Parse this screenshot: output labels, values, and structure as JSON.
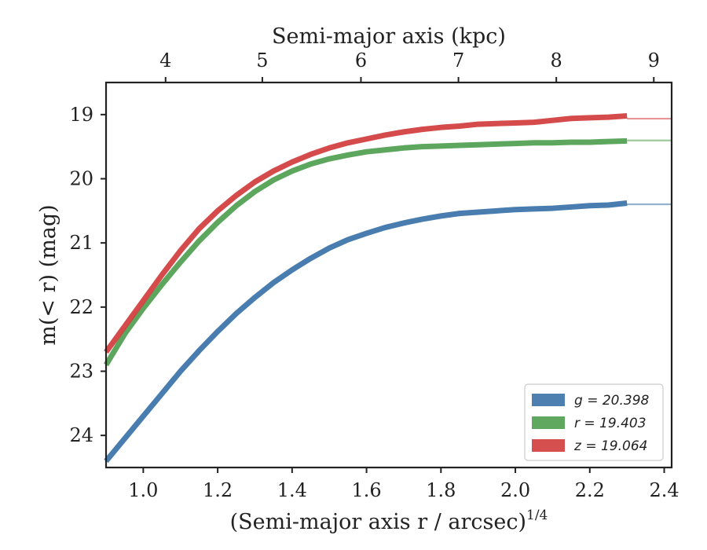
{
  "chart_data": {
    "type": "line",
    "xlabel": "(Semi-major axis r / arcsec)",
    "xlabel_sup": "1/4",
    "ylabel": "m(< r) (mag)",
    "top_xlabel": "Semi-major axis (kpc)",
    "xlim": [
      0.9,
      2.42
    ],
    "ylim": [
      24.5,
      18.5
    ],
    "y_inverted": true,
    "grid": false,
    "legend_position": "lower-right",
    "x_ticks": [
      1.0,
      1.2,
      1.4,
      1.6,
      1.8,
      2.0,
      2.2,
      2.4
    ],
    "x_tick_labels": [
      "1.0",
      "1.2",
      "1.4",
      "1.6",
      "1.8",
      "2.0",
      "2.2",
      "2.4"
    ],
    "y_ticks": [
      19,
      20,
      21,
      22,
      23,
      24
    ],
    "y_tick_labels": [
      "19",
      "20",
      "21",
      "22",
      "23",
      "24"
    ],
    "top_ticks_kpc": [
      4,
      5,
      6,
      7,
      8,
      9
    ],
    "top_tick_labels": [
      "4",
      "5",
      "6",
      "7",
      "8",
      "9"
    ],
    "top_tick_positions_x": [
      1.06,
      1.32,
      1.585,
      1.847,
      2.11,
      2.372
    ],
    "series": [
      {
        "name": "g = 20.398",
        "color": "#3a72a8",
        "asymptote": 20.398,
        "x": [
          0.9,
          0.95,
          1.0,
          1.05,
          1.1,
          1.15,
          1.2,
          1.25,
          1.3,
          1.35,
          1.4,
          1.45,
          1.5,
          1.55,
          1.6,
          1.65,
          1.7,
          1.75,
          1.8,
          1.85,
          1.9,
          1.95,
          2.0,
          2.05,
          2.1,
          2.15,
          2.2,
          2.25,
          2.3
        ],
        "y": [
          24.4,
          24.05,
          23.7,
          23.35,
          23.0,
          22.68,
          22.38,
          22.1,
          21.85,
          21.62,
          21.42,
          21.24,
          21.08,
          20.95,
          20.85,
          20.76,
          20.69,
          20.63,
          20.58,
          20.54,
          20.52,
          20.5,
          20.48,
          20.47,
          20.46,
          20.44,
          20.42,
          20.41,
          20.38
        ]
      },
      {
        "name": "r = 19.403",
        "color": "#4f9e4f",
        "asymptote": 19.403,
        "x": [
          0.9,
          0.95,
          1.0,
          1.05,
          1.1,
          1.15,
          1.2,
          1.25,
          1.3,
          1.35,
          1.4,
          1.45,
          1.5,
          1.55,
          1.6,
          1.65,
          1.7,
          1.75,
          1.8,
          1.85,
          1.9,
          1.95,
          2.0,
          2.05,
          2.1,
          2.15,
          2.2,
          2.25,
          2.3
        ],
        "y": [
          22.9,
          22.42,
          22.02,
          21.65,
          21.3,
          20.97,
          20.68,
          20.42,
          20.2,
          20.02,
          19.88,
          19.77,
          19.69,
          19.63,
          19.58,
          19.55,
          19.52,
          19.5,
          19.49,
          19.48,
          19.47,
          19.46,
          19.45,
          19.44,
          19.44,
          19.43,
          19.43,
          19.42,
          19.41
        ]
      },
      {
        "name": "z = 19.064",
        "color": "#d13c3c",
        "asymptote": 19.064,
        "x": [
          0.9,
          0.95,
          1.0,
          1.05,
          1.1,
          1.15,
          1.2,
          1.25,
          1.3,
          1.35,
          1.4,
          1.45,
          1.5,
          1.55,
          1.6,
          1.65,
          1.7,
          1.75,
          1.8,
          1.85,
          1.9,
          1.95,
          2.0,
          2.05,
          2.1,
          2.15,
          2.2,
          2.25,
          2.3
        ],
        "y": [
          22.7,
          22.3,
          21.9,
          21.5,
          21.12,
          20.78,
          20.5,
          20.26,
          20.05,
          19.88,
          19.74,
          19.62,
          19.52,
          19.44,
          19.38,
          19.32,
          19.27,
          19.23,
          19.2,
          19.18,
          19.15,
          19.14,
          19.13,
          19.12,
          19.09,
          19.06,
          19.05,
          19.04,
          19.02
        ]
      }
    ]
  }
}
